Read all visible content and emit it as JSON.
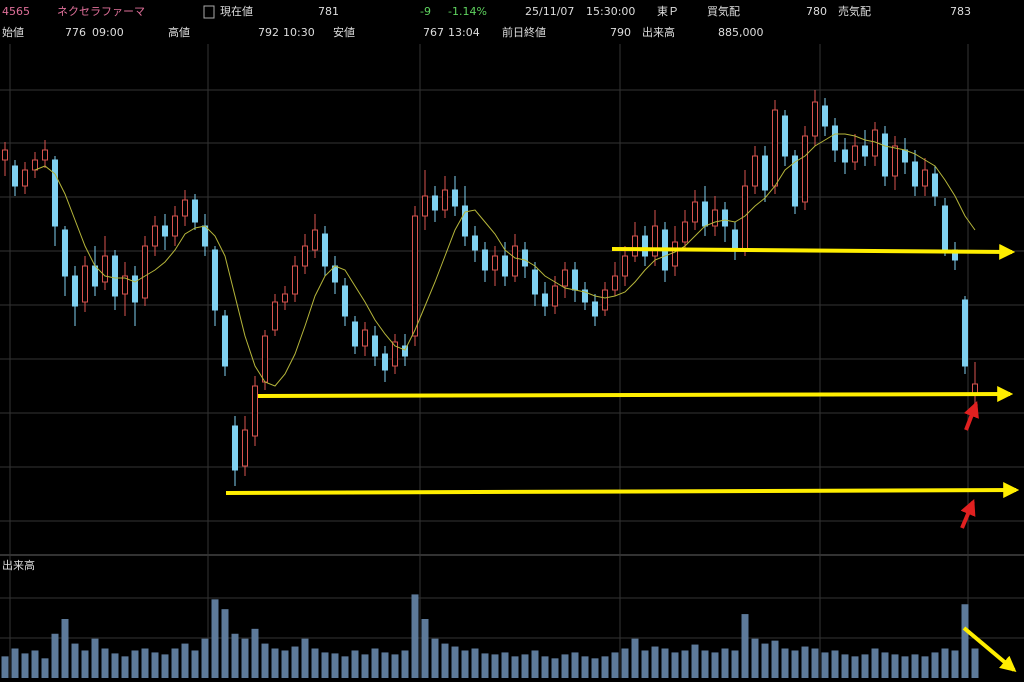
{
  "header": {
    "code": "4565",
    "name": "ネクセラファーマ",
    "current_label": "現在値",
    "current": "781",
    "change": "-9",
    "change_pct": "-1.14%",
    "date": "25/11/07",
    "time": "15:30:00",
    "market": "東Ｐ",
    "bid_label": "買気配",
    "bid": "780",
    "ask_label": "売気配",
    "ask": "783",
    "open_label": "始値",
    "open": "776",
    "open_time": "09:00",
    "high_label": "高値",
    "high": "792",
    "high_time": "10:30",
    "low_label": "安値",
    "low": "767",
    "low_time": "13:04",
    "prev_close_label": "前日終値",
    "prev_close": "790",
    "volume_label": "出来高",
    "volume": "885,000"
  },
  "chart_data": {
    "type": "candlestick",
    "ylim": [
      698,
      958
    ],
    "volume_label": "出来高",
    "volume_ylim": [
      0,
      120
    ],
    "up_color": "#d9534f",
    "down_color": "#7fd0f0",
    "ma_color": "#b5b53a",
    "volume_color": "#5d7a9a",
    "open": [
      893,
      890,
      880,
      888,
      893,
      893,
      858,
      835,
      822,
      840,
      832,
      845,
      826,
      835,
      824,
      850,
      860,
      855,
      865,
      873,
      860,
      848,
      815,
      760,
      740,
      755,
      782,
      808,
      822,
      826,
      840,
      848,
      856,
      840,
      830,
      812,
      800,
      805,
      796,
      790,
      800,
      805,
      865,
      875,
      868,
      878,
      870,
      855,
      848,
      838,
      845,
      835,
      848,
      838,
      826,
      820,
      830,
      838,
      828,
      822,
      818,
      828,
      835,
      845,
      855,
      845,
      858,
      840,
      852,
      862,
      872,
      860,
      868,
      858,
      848,
      880,
      895,
      880,
      915,
      895,
      872,
      905,
      920,
      910,
      898,
      892,
      900,
      895,
      906,
      885,
      898,
      892,
      880,
      886,
      870,
      848,
      823,
      776
    ],
    "close": [
      898,
      880,
      888,
      893,
      898,
      860,
      835,
      820,
      840,
      830,
      845,
      825,
      835,
      822,
      850,
      860,
      855,
      865,
      873,
      862,
      850,
      818,
      790,
      738,
      758,
      780,
      805,
      822,
      826,
      840,
      850,
      858,
      840,
      832,
      815,
      800,
      808,
      795,
      788,
      802,
      795,
      865,
      875,
      868,
      878,
      870,
      855,
      848,
      838,
      845,
      835,
      850,
      840,
      826,
      820,
      830,
      838,
      828,
      822,
      815,
      828,
      835,
      845,
      855,
      845,
      860,
      838,
      852,
      862,
      872,
      860,
      868,
      860,
      848,
      880,
      895,
      878,
      918,
      895,
      870,
      905,
      922,
      910,
      898,
      892,
      900,
      895,
      908,
      885,
      900,
      892,
      880,
      888,
      875,
      848,
      843,
      790,
      781
    ],
    "high": [
      902,
      893,
      892,
      897,
      903,
      895,
      860,
      840,
      845,
      850,
      855,
      848,
      842,
      840,
      855,
      865,
      866,
      870,
      878,
      876,
      866,
      850,
      818,
      765,
      765,
      785,
      808,
      826,
      830,
      845,
      856,
      866,
      860,
      845,
      834,
      815,
      812,
      810,
      800,
      806,
      806,
      870,
      888,
      880,
      885,
      885,
      880,
      860,
      852,
      850,
      852,
      856,
      852,
      842,
      832,
      835,
      842,
      842,
      832,
      826,
      832,
      842,
      850,
      862,
      860,
      868,
      862,
      860,
      868,
      878,
      880,
      875,
      872,
      862,
      888,
      900,
      900,
      923,
      918,
      898,
      910,
      928,
      924,
      914,
      904,
      906,
      908,
      912,
      910,
      905,
      904,
      898,
      894,
      890,
      874,
      852,
      825,
      792
    ],
    "low": [
      885,
      875,
      876,
      884,
      889,
      850,
      825,
      810,
      817,
      825,
      828,
      818,
      815,
      810,
      820,
      845,
      848,
      850,
      860,
      858,
      845,
      810,
      785,
      730,
      735,
      750,
      778,
      805,
      818,
      822,
      836,
      844,
      835,
      826,
      810,
      796,
      795,
      790,
      782,
      786,
      790,
      800,
      858,
      862,
      864,
      865,
      850,
      842,
      832,
      830,
      830,
      832,
      834,
      820,
      815,
      816,
      824,
      822,
      818,
      810,
      815,
      825,
      830,
      842,
      840,
      840,
      832,
      835,
      848,
      858,
      855,
      855,
      852,
      843,
      845,
      876,
      872,
      876,
      890,
      866,
      868,
      900,
      905,
      892,
      886,
      888,
      890,
      890,
      880,
      878,
      886,
      875,
      875,
      870,
      845,
      838,
      786,
      767
    ],
    "moving_average": [
      null,
      null,
      null,
      888,
      890,
      886,
      876,
      863,
      850,
      840,
      835,
      834,
      834,
      832,
      835,
      838,
      842,
      848,
      856,
      859,
      860,
      855,
      845,
      825,
      805,
      790,
      782,
      780,
      786,
      796,
      810,
      825,
      835,
      840,
      838,
      830,
      822,
      813,
      806,
      800,
      798,
      808,
      820,
      832,
      845,
      858,
      867,
      868,
      862,
      856,
      848,
      844,
      843,
      840,
      835,
      832,
      829,
      828,
      827,
      825,
      824,
      825,
      827,
      832,
      838,
      843,
      845,
      847,
      850,
      855,
      860,
      862,
      863,
      862,
      865,
      870,
      874,
      880,
      888,
      892,
      895,
      900,
      903,
      906,
      906,
      905,
      903,
      902,
      900,
      899,
      898,
      896,
      893,
      890,
      883,
      875,
      865,
      858
    ],
    "volume": [
      22,
      30,
      25,
      28,
      20,
      45,
      60,
      35,
      28,
      40,
      30,
      25,
      22,
      28,
      30,
      26,
      24,
      30,
      35,
      28,
      40,
      80,
      70,
      45,
      40,
      50,
      35,
      30,
      28,
      32,
      40,
      30,
      26,
      25,
      22,
      28,
      24,
      30,
      26,
      24,
      28,
      85,
      60,
      40,
      35,
      32,
      28,
      30,
      25,
      24,
      26,
      22,
      24,
      28,
      22,
      20,
      24,
      26,
      22,
      20,
      22,
      26,
      30,
      40,
      28,
      32,
      30,
      26,
      28,
      34,
      28,
      26,
      30,
      28,
      65,
      40,
      35,
      38,
      30,
      28,
      32,
      30,
      26,
      28,
      24,
      22,
      24,
      30,
      26,
      24,
      22,
      24,
      22,
      26,
      30,
      28,
      75,
      30
    ]
  }
}
